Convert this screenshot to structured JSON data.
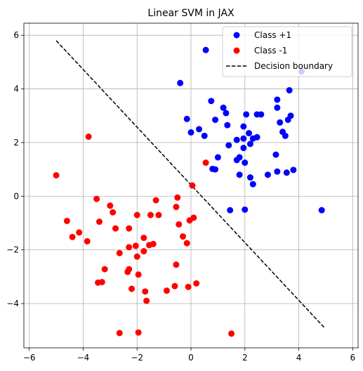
{
  "chart_data": {
    "type": "scatter",
    "title": "Linear SVM in JAX",
    "xlabel": "",
    "ylabel": "",
    "xlim": [
      -6.2,
      6.2
    ],
    "ylim": [
      -5.65,
      6.45
    ],
    "grid": true,
    "legend_position": "top-right",
    "x_ticks": [
      -6,
      -4,
      -2,
      0,
      2,
      4,
      6
    ],
    "y_ticks": [
      -4,
      -2,
      0,
      2,
      4,
      6
    ],
    "series": [
      {
        "name": "Class +1",
        "type": "scatter",
        "color": "#0000ff",
        "points": [
          [
            0.55,
            5.45
          ],
          [
            -0.4,
            4.22
          ],
          [
            4.1,
            4.65
          ],
          [
            3.65,
            3.95
          ],
          [
            0.75,
            3.55
          ],
          [
            1.2,
            3.3
          ],
          [
            3.2,
            3.6
          ],
          [
            1.3,
            3.1
          ],
          [
            3.2,
            3.3
          ],
          [
            0.9,
            2.85
          ],
          [
            -0.15,
            2.88
          ],
          [
            2.05,
            3.05
          ],
          [
            2.45,
            3.05
          ],
          [
            2.6,
            3.05
          ],
          [
            3.7,
            3.0
          ],
          [
            3.6,
            2.85
          ],
          [
            3.3,
            2.75
          ],
          [
            1.35,
            2.65
          ],
          [
            1.95,
            2.6
          ],
          [
            0.3,
            2.5
          ],
          [
            0.0,
            2.38
          ],
          [
            0.5,
            2.25
          ],
          [
            2.15,
            2.35
          ],
          [
            3.4,
            2.4
          ],
          [
            3.5,
            2.25
          ],
          [
            1.7,
            2.1
          ],
          [
            1.95,
            2.15
          ],
          [
            2.3,
            2.15
          ],
          [
            2.45,
            2.2
          ],
          [
            2.2,
            1.95
          ],
          [
            1.4,
            1.9
          ],
          [
            1.95,
            1.8
          ],
          [
            3.15,
            1.55
          ],
          [
            1.0,
            1.45
          ],
          [
            1.7,
            1.35
          ],
          [
            1.8,
            1.45
          ],
          [
            2.0,
            1.25
          ],
          [
            0.9,
            1.0
          ],
          [
            0.8,
            1.02
          ],
          [
            3.8,
            0.98
          ],
          [
            3.2,
            0.92
          ],
          [
            3.55,
            0.88
          ],
          [
            2.85,
            0.8
          ],
          [
            1.8,
            0.8
          ],
          [
            2.2,
            0.7
          ],
          [
            2.3,
            0.45
          ],
          [
            1.45,
            -0.52
          ],
          [
            2.0,
            -0.5
          ],
          [
            4.85,
            -0.52
          ]
        ]
      },
      {
        "name": "Class -1",
        "type": "scatter",
        "color": "#ff0000",
        "points": [
          [
            -3.8,
            2.22
          ],
          [
            -5.0,
            0.78
          ],
          [
            0.55,
            1.25
          ],
          [
            0.05,
            0.4
          ],
          [
            -0.5,
            -0.05
          ],
          [
            -3.5,
            -0.1
          ],
          [
            -1.3,
            -0.15
          ],
          [
            -3.0,
            -0.35
          ],
          [
            -2.9,
            -0.6
          ],
          [
            -0.55,
            -0.4
          ],
          [
            0.1,
            -0.8
          ],
          [
            -0.05,
            -0.9
          ],
          [
            -4.6,
            -0.92
          ],
          [
            -4.15,
            -1.35
          ],
          [
            -2.0,
            -0.7
          ],
          [
            -1.5,
            -0.7
          ],
          [
            -1.2,
            -0.7
          ],
          [
            -3.4,
            -0.95
          ],
          [
            -0.45,
            -1.05
          ],
          [
            -2.8,
            -1.2
          ],
          [
            -2.3,
            -1.2
          ],
          [
            -4.4,
            -1.52
          ],
          [
            -1.75,
            -1.55
          ],
          [
            -0.3,
            -1.5
          ],
          [
            -3.85,
            -1.68
          ],
          [
            -0.15,
            -1.75
          ],
          [
            -1.4,
            -1.78
          ],
          [
            -1.55,
            -1.82
          ],
          [
            -2.05,
            -1.85
          ],
          [
            -2.3,
            -1.9
          ],
          [
            -1.75,
            -2.05
          ],
          [
            -2.65,
            -2.12
          ],
          [
            -2.0,
            -2.25
          ],
          [
            -0.55,
            -2.55
          ],
          [
            -3.2,
            -2.72
          ],
          [
            -2.3,
            -2.72
          ],
          [
            -2.35,
            -2.82
          ],
          [
            -1.95,
            -2.92
          ],
          [
            -3.3,
            -3.2
          ],
          [
            -3.45,
            -3.22
          ],
          [
            0.2,
            -3.25
          ],
          [
            -0.1,
            -3.38
          ],
          [
            -0.6,
            -3.35
          ],
          [
            -2.2,
            -3.45
          ],
          [
            -0.9,
            -3.52
          ],
          [
            -1.7,
            -3.55
          ],
          [
            -1.65,
            -3.9
          ],
          [
            -2.65,
            -5.1
          ],
          [
            -1.95,
            -5.08
          ],
          [
            1.5,
            -5.12
          ]
        ]
      }
    ],
    "decision_boundary": {
      "name": "Decision boundary",
      "style": "dashed",
      "color": "#000000",
      "points": [
        [
          -5.0,
          5.8
        ],
        [
          4.95,
          -4.9
        ]
      ]
    }
  }
}
